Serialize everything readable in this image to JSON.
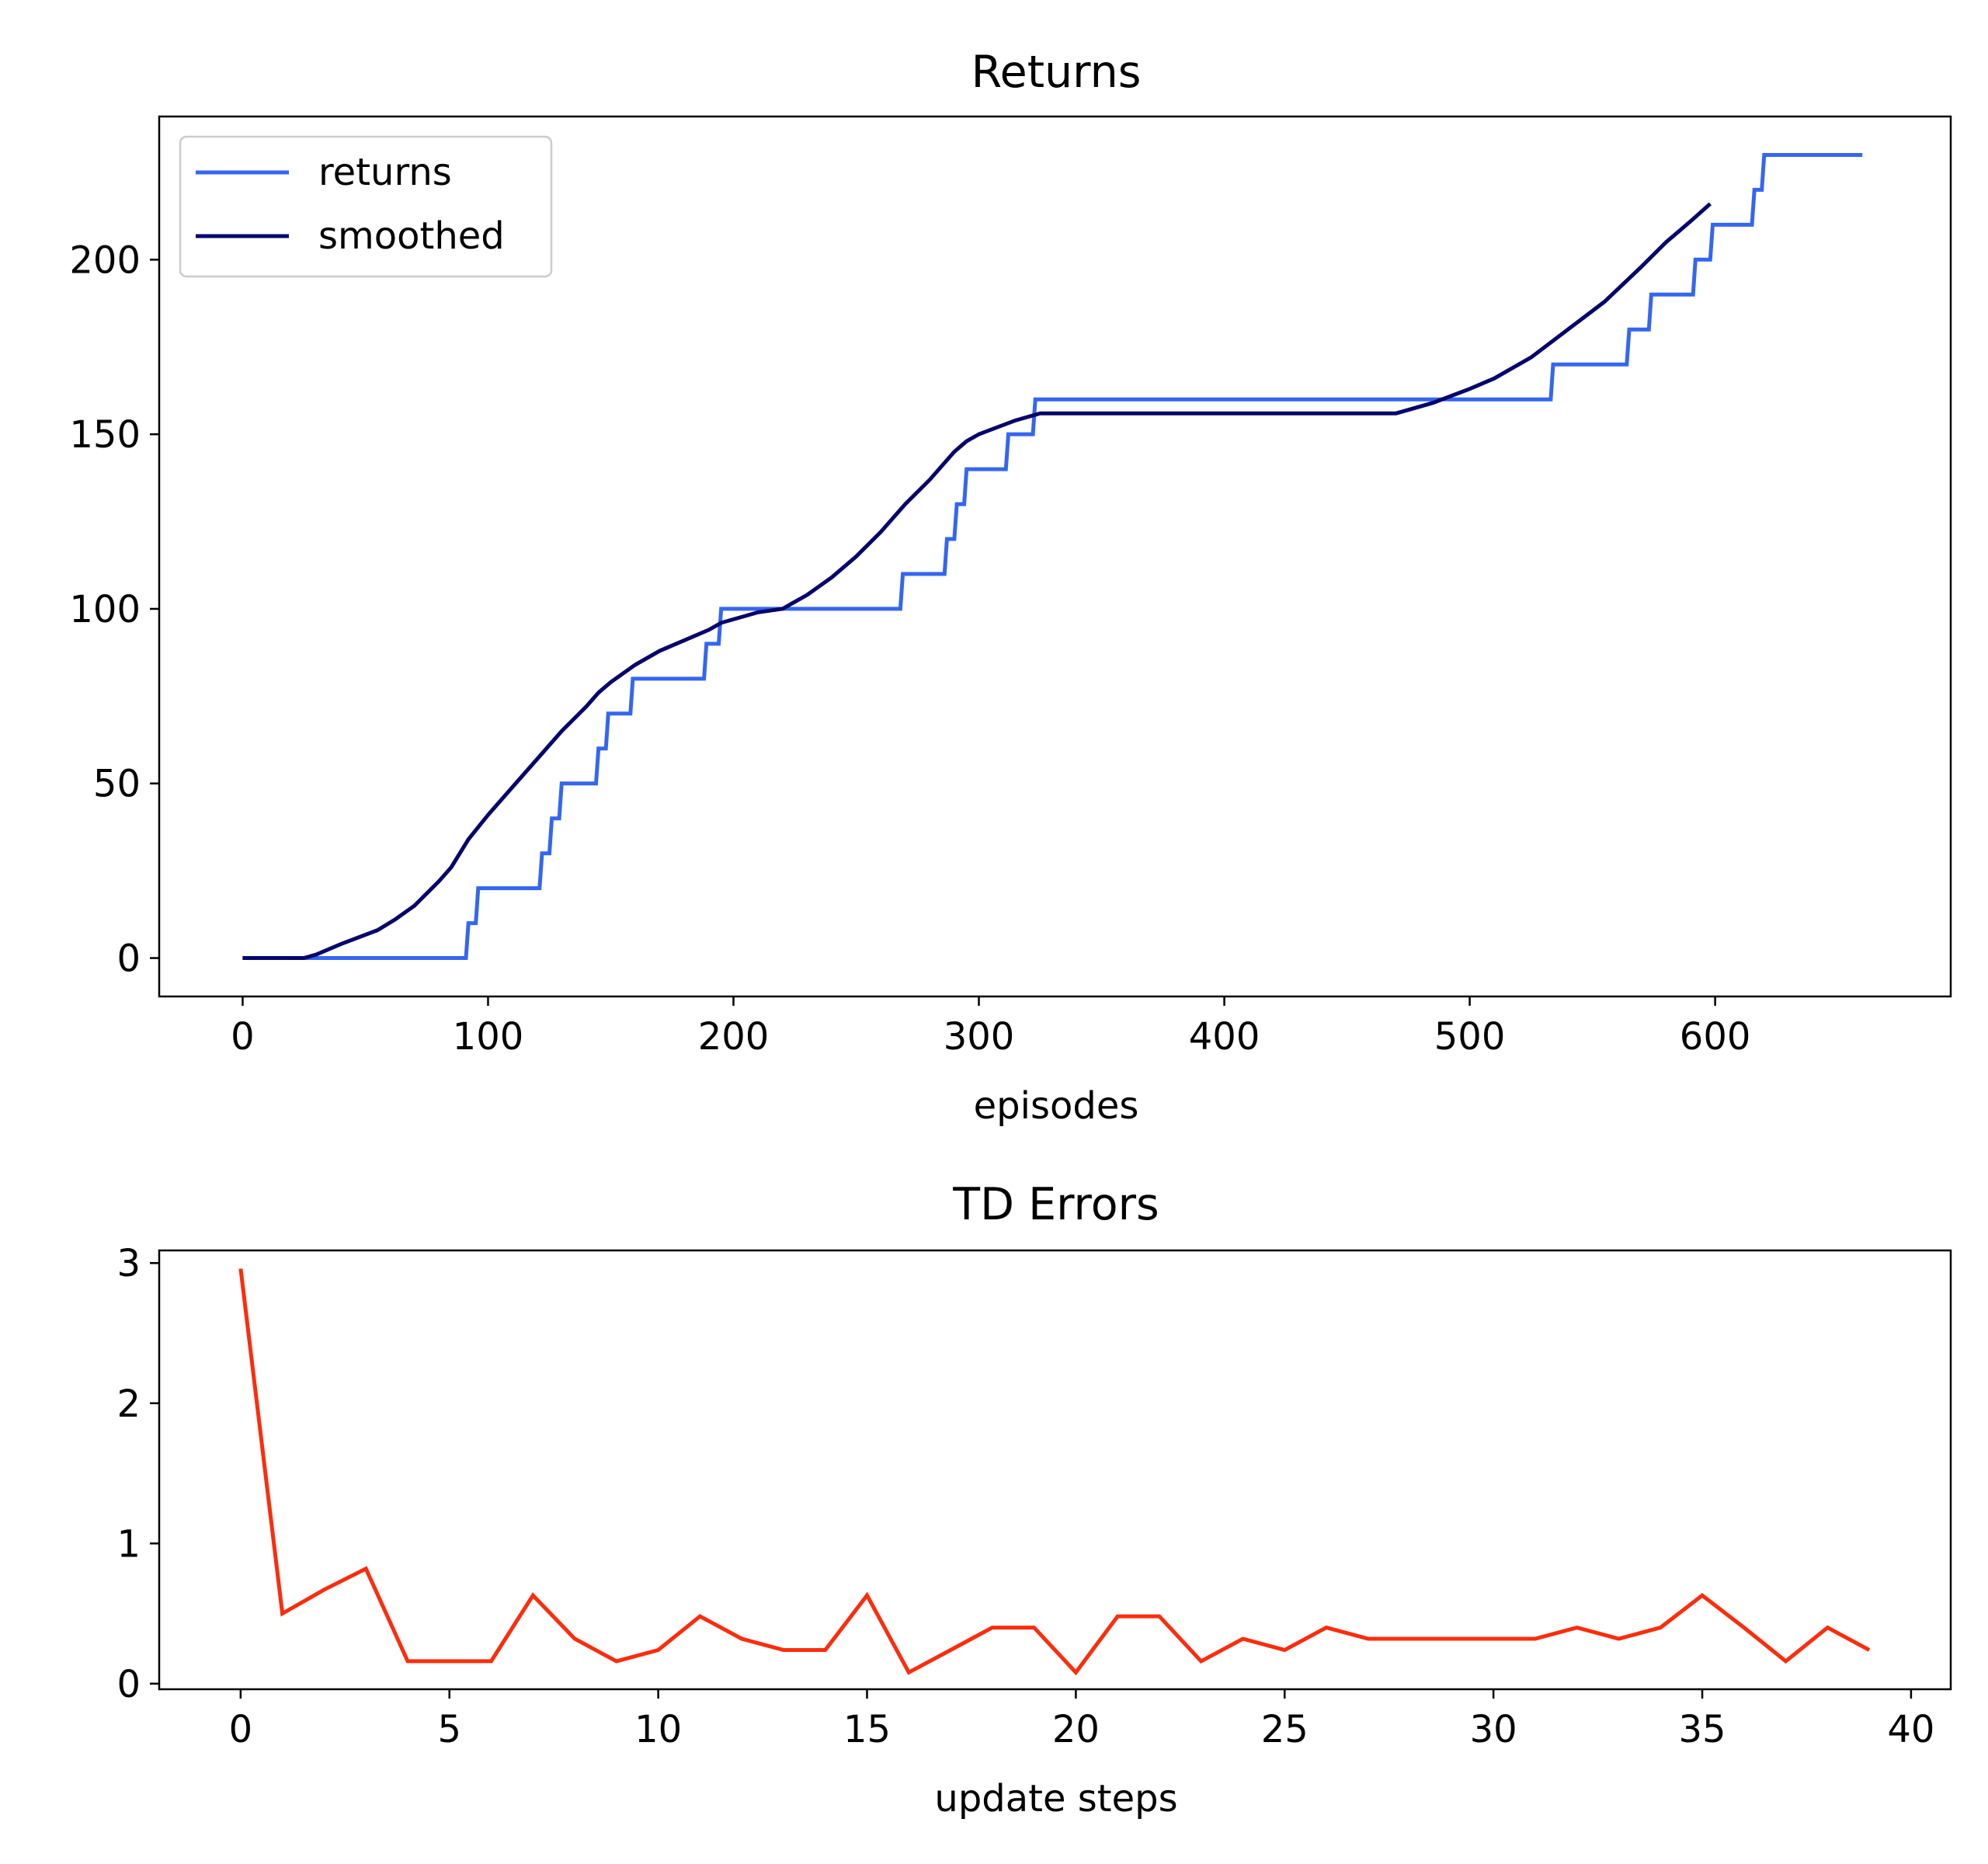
{
  "colors": {
    "returns": "#3466f0",
    "smoothed": "#05056b",
    "td_errors": "#fb2d0d",
    "axes": "#000000",
    "background": "#ffffff"
  },
  "chart_data": [
    {
      "type": "line",
      "title": "Returns",
      "xlabel": "episodes",
      "ylabel": "",
      "xlim": [
        -34,
        696
      ],
      "ylim": [
        -11,
        241
      ],
      "xticks": [
        0,
        100,
        200,
        300,
        400,
        500,
        600
      ],
      "yticks": [
        0,
        50,
        100,
        150,
        200
      ],
      "xtick_labels": [
        "0",
        "100",
        "200",
        "300",
        "400",
        "500",
        "600"
      ],
      "ytick_labels": [
        "0",
        "50",
        "100",
        "150",
        "200"
      ],
      "grid": false,
      "legend": {
        "placement": "upper left",
        "entries": [
          "returns",
          "smoothed"
        ]
      },
      "series": [
        {
          "name": "returns",
          "style": "step",
          "x": [
            0,
            91,
            92,
            95,
            96,
            121,
            122,
            125,
            126,
            129,
            130,
            134,
            135,
            144,
            145,
            148,
            149,
            158,
            159,
            188,
            189,
            194,
            195,
            268,
            269,
            286,
            287,
            290,
            291,
            294,
            295,
            311,
            312,
            322,
            323,
            533,
            534,
            564,
            565,
            573,
            574,
            591,
            592,
            598,
            599,
            615,
            616,
            619,
            620,
            660
          ],
          "y": [
            0,
            0,
            10,
            10,
            20,
            20,
            30,
            30,
            40,
            40,
            50,
            50,
            50,
            50,
            60,
            60,
            70,
            70,
            80,
            80,
            90,
            90,
            100,
            100,
            110,
            110,
            120,
            120,
            130,
            130,
            140,
            140,
            150,
            150,
            160,
            160,
            170,
            170,
            180,
            180,
            190,
            190,
            200,
            200,
            210,
            210,
            220,
            220,
            230,
            230
          ]
        },
        {
          "name": "smoothed",
          "style": "line",
          "x": [
            0,
            25,
            30,
            40,
            55,
            62,
            70,
            80,
            85,
            92,
            100,
            110,
            120,
            130,
            140,
            145,
            150,
            160,
            170,
            180,
            190,
            195,
            200,
            210,
            220,
            225,
            230,
            240,
            250,
            260,
            270,
            280,
            285,
            290,
            295,
            300,
            315,
            325,
            400,
            470,
            485,
            500,
            510,
            525,
            540,
            555,
            570,
            580,
            590,
            598
          ],
          "y": [
            0,
            0,
            1,
            4,
            8,
            11,
            15,
            22,
            26,
            34,
            41,
            49,
            57,
            65,
            72,
            76,
            79,
            84,
            88,
            91,
            94,
            96,
            97,
            99,
            100,
            102,
            104,
            109,
            115,
            122,
            130,
            137,
            141,
            145,
            148,
            150,
            154,
            156,
            156,
            156,
            159,
            163,
            166,
            172,
            180,
            188,
            198,
            205,
            211,
            216
          ]
        }
      ]
    },
    {
      "type": "line",
      "title": "TD Errors",
      "xlabel": "update steps",
      "ylabel": "",
      "xlim": [
        -1.95,
        40.95
      ],
      "ylim": [
        -0.04,
        3.09
      ],
      "xticks": [
        0,
        5,
        10,
        15,
        20,
        25,
        30,
        35,
        40
      ],
      "yticks": [
        0,
        1,
        2,
        3
      ],
      "xtick_labels": [
        "0",
        "5",
        "10",
        "15",
        "20",
        "25",
        "30",
        "35",
        "40"
      ],
      "ytick_labels": [
        "0",
        "1",
        "2",
        "3"
      ],
      "grid": false,
      "series": [
        {
          "x": [
            0,
            1,
            2,
            3,
            4,
            5,
            6,
            7,
            8,
            9,
            10,
            11,
            12,
            13,
            14,
            15,
            16,
            17,
            18,
            19,
            20,
            21,
            22,
            23,
            24,
            25,
            26,
            27,
            28,
            29,
            30,
            31,
            32,
            33,
            34,
            35,
            36,
            37,
            38,
            39
          ],
          "y": [
            2.96,
            0.5,
            0.67,
            0.82,
            0.16,
            0.16,
            0.16,
            0.63,
            0.32,
            0.16,
            0.24,
            0.48,
            0.32,
            0.24,
            0.24,
            0.63,
            0.08,
            0.24,
            0.4,
            0.4,
            0.08,
            0.48,
            0.48,
            0.16,
            0.32,
            0.24,
            0.4,
            0.32,
            0.32,
            0.32,
            0.32,
            0.32,
            0.4,
            0.32,
            0.4,
            0.63,
            0.4,
            0.16,
            0.4,
            0.24
          ]
        }
      ]
    }
  ]
}
